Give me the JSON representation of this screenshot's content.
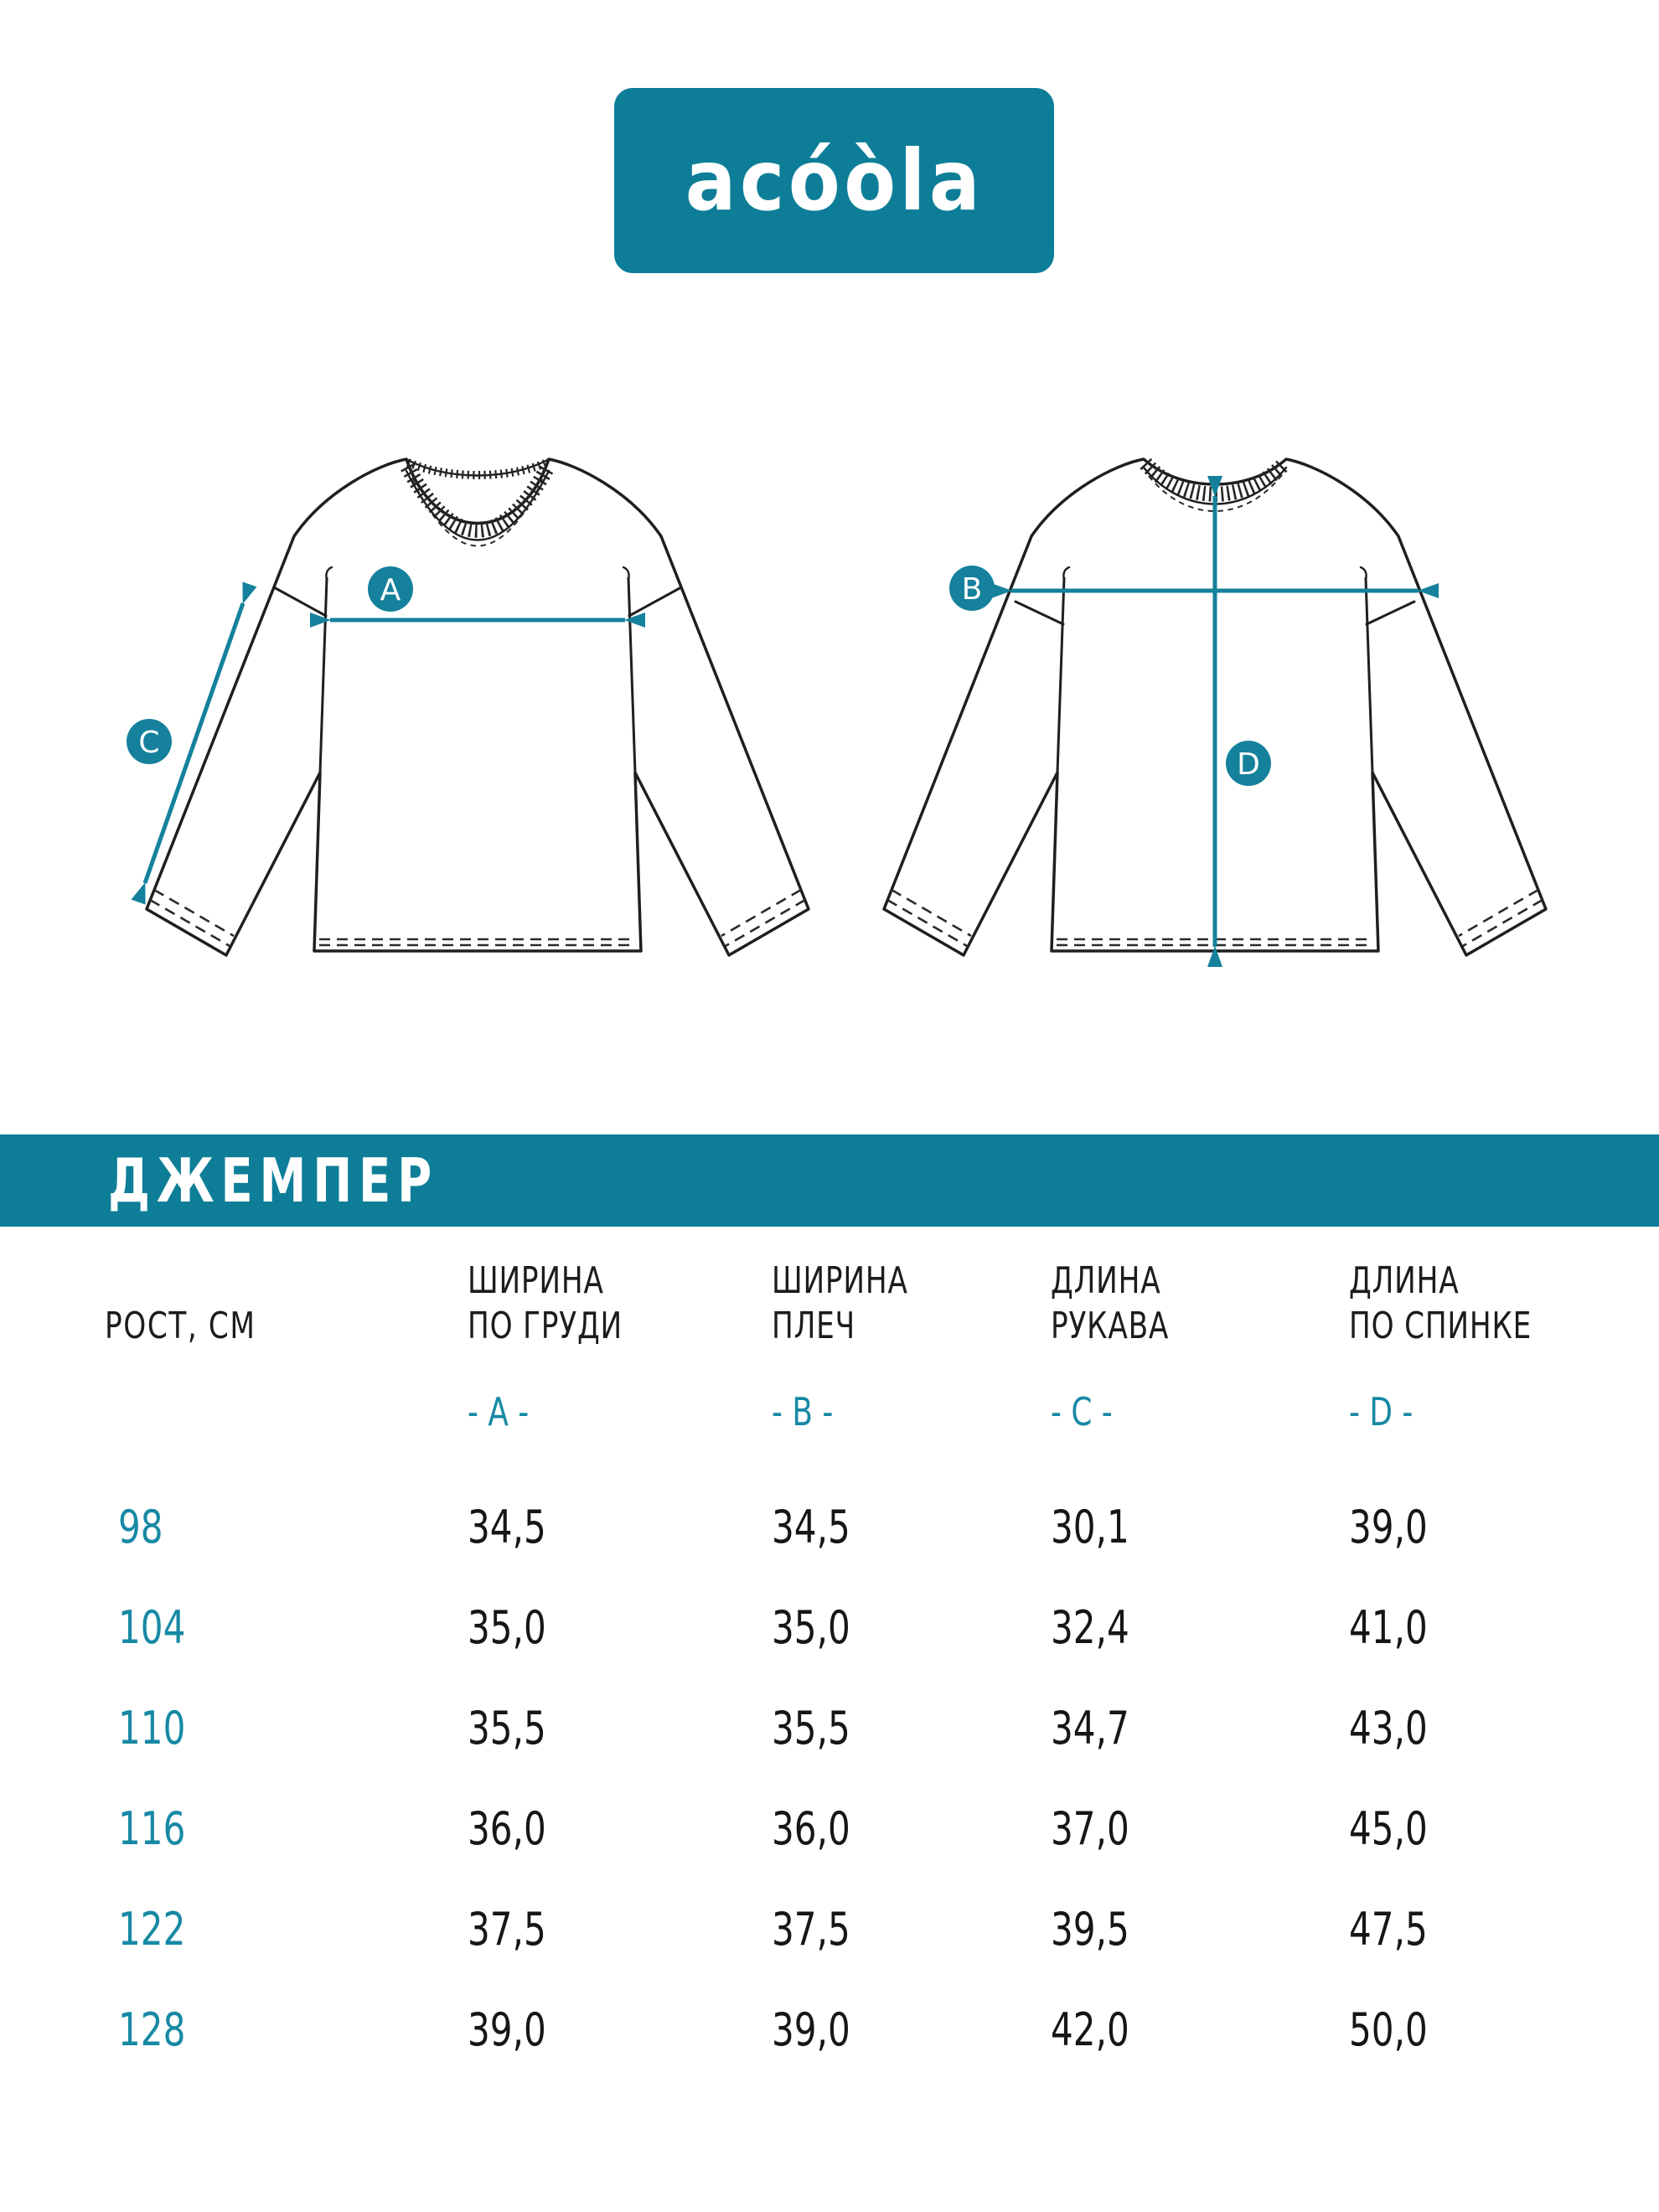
{
  "logo": {
    "text": "acóòla"
  },
  "banner": {
    "title": "ДЖЕМПЕР"
  },
  "diagram": {
    "front_labels": {
      "a": "A",
      "c": "C"
    },
    "back_labels": {
      "b": "B",
      "d": "D"
    }
  },
  "table": {
    "row_header": "РОСТ, СМ",
    "columns": [
      {
        "line1": "ШИРИНА",
        "line2": "ПО ГРУДИ",
        "letter": "- A -"
      },
      {
        "line1": "ШИРИНА",
        "line2": "ПЛЕЧ",
        "letter": "- B -"
      },
      {
        "line1": "ДЛИНА",
        "line2": "РУКАВА",
        "letter": "- C -"
      },
      {
        "line1": "ДЛИНА",
        "line2": "ПО СПИНКЕ",
        "letter": "- D -"
      }
    ],
    "rows": [
      {
        "size": "98",
        "values": [
          "34,5",
          "34,5",
          "30,1",
          "39,0"
        ]
      },
      {
        "size": "104",
        "values": [
          "35,0",
          "35,0",
          "32,4",
          "41,0"
        ]
      },
      {
        "size": "110",
        "values": [
          "35,5",
          "35,5",
          "34,7",
          "43,0"
        ]
      },
      {
        "size": "116",
        "values": [
          "36,0",
          "36,0",
          "37,0",
          "45,0"
        ]
      },
      {
        "size": "122",
        "values": [
          "37,5",
          "37,5",
          "39,5",
          "47,5"
        ]
      },
      {
        "size": "128",
        "values": [
          "39,0",
          "39,0",
          "42,0",
          "50,0"
        ]
      }
    ]
  },
  "colors": {
    "accent": "#0E7E98",
    "accent2": "#15819C",
    "teal_text": "#1789A4",
    "ink": "#1C1C1C"
  }
}
